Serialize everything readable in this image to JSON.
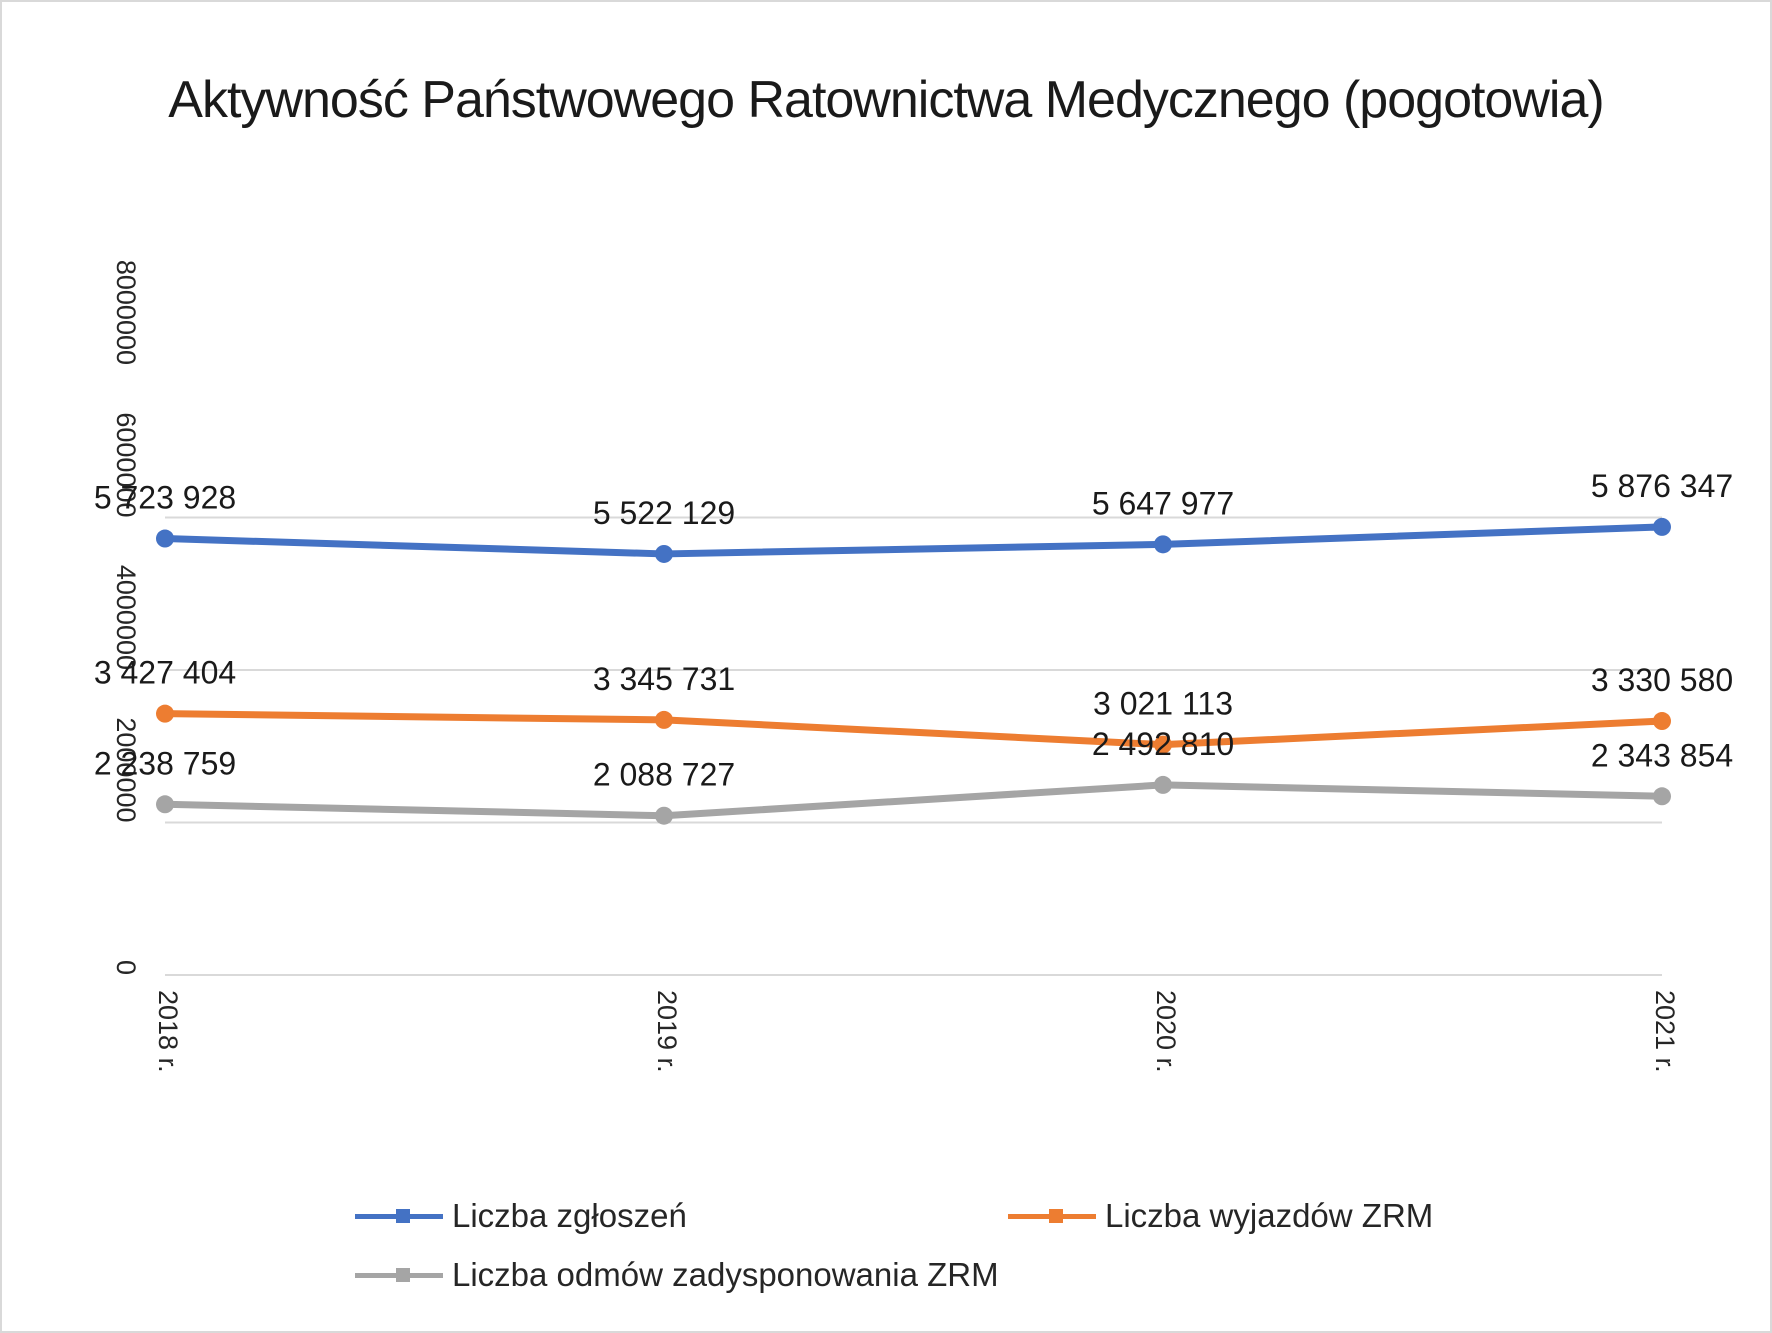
{
  "chart_data": {
    "type": "line",
    "title": "Aktywność Państwowego Ratownictwa Medycznego (pogotowia)",
    "categories": [
      "2018 r.",
      "2019 r.",
      "2020 r.",
      "2021 r."
    ],
    "yticks": [
      "0",
      "2000000",
      "4000000",
      "6000000",
      "8000000"
    ],
    "ylim": [
      0,
      8000000
    ],
    "grid": true,
    "legend_position": "bottom",
    "series": [
      {
        "name": "Liczba zgłoszeń",
        "color": "#4472c4",
        "values": [
          5723928,
          5522129,
          5647977,
          5876347
        ],
        "labels": [
          "5 723 928",
          "5 522 129",
          "5 647 977",
          "5 876 347"
        ]
      },
      {
        "name": "Liczba wyjazdów ZRM",
        "color": "#ed7d31",
        "values": [
          3427404,
          3345731,
          3021113,
          3330580
        ],
        "labels": [
          "3 427 404",
          "3 345 731",
          "3 021 113",
          "3 330 580"
        ]
      },
      {
        "name": "Liczba odmów zadysponowania ZRM",
        "color": "#a5a5a5",
        "values": [
          2238759,
          2088727,
          2492810,
          2343854
        ],
        "labels": [
          "2 238 759",
          "2 088 727",
          "2 492 810",
          "2 343 854"
        ]
      }
    ]
  }
}
